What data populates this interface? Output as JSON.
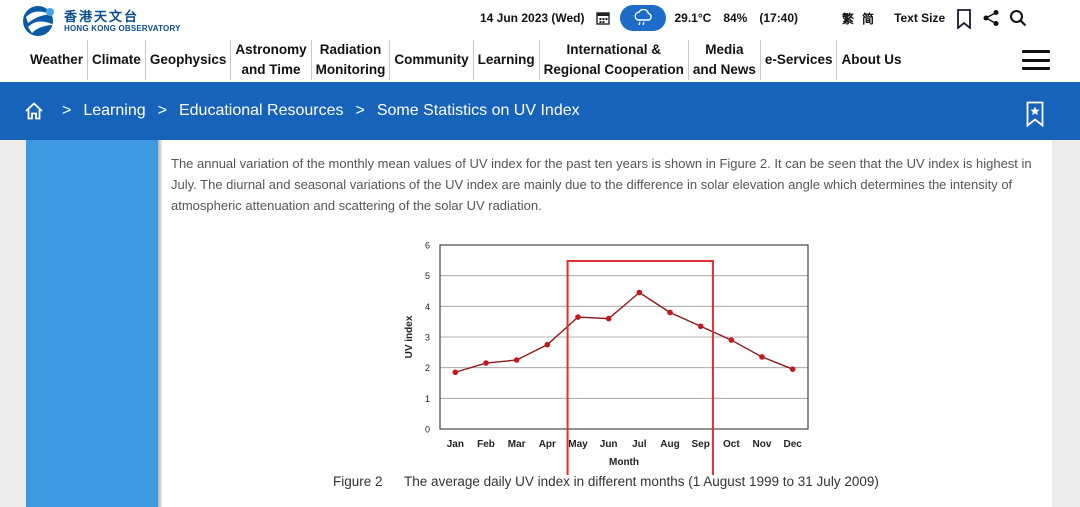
{
  "header": {
    "logo_zh": "香港天文台",
    "logo_en": "HONG KONG OBSERVATORY",
    "date": "14 Jun 2023 (Wed)",
    "temperature": "29.1°C",
    "humidity": "84%",
    "time": "(17:40)",
    "lang_traditional": "繁",
    "lang_simplified": "简",
    "text_size_label": "Text Size",
    "icons": [
      "calendar-icon",
      "weather-cloud-rain-icon",
      "bookmark-icon",
      "share-icon",
      "search-icon",
      "menu-icon"
    ]
  },
  "nav": {
    "items": [
      {
        "line1": "Weather",
        "line2": ""
      },
      {
        "line1": "Climate",
        "line2": ""
      },
      {
        "line1": "Geophysics",
        "line2": ""
      },
      {
        "line1": "Astronomy",
        "line2": "and Time"
      },
      {
        "line1": "Radiation",
        "line2": "Monitoring"
      },
      {
        "line1": "Community",
        "line2": ""
      },
      {
        "line1": "Learning",
        "line2": ""
      },
      {
        "line1": "International &",
        "line2": "Regional Cooperation"
      },
      {
        "line1": "Media",
        "line2": "and News"
      },
      {
        "line1": "e-Services",
        "line2": ""
      },
      {
        "line1": "About Us",
        "line2": ""
      }
    ]
  },
  "breadcrumb": {
    "separator": ">",
    "items": [
      "Learning",
      "Educational Resources",
      "Some Statistics on UV Index"
    ]
  },
  "content": {
    "paragraph": "The annual variation of the monthly mean values of UV index for the past ten years is shown in Figure 2.  It can be seen that the UV index is highest in July.  The diurnal and seasonal variations of the UV index are mainly due to the difference in solar elevation angle which determines the intensity of atmospheric attenuation and scattering of the solar UV radiation.",
    "caption_number": "Figure 2",
    "caption_text": "The average daily UV index in different months (1 August 1999 to 31 July 2009)"
  },
  "chart_data": {
    "type": "line",
    "title": "",
    "xlabel": "Month",
    "ylabel": "UV index",
    "categories": [
      "Jan",
      "Feb",
      "Mar",
      "Apr",
      "May",
      "Jun",
      "Jul",
      "Aug",
      "Sep",
      "Oct",
      "Nov",
      "Dec"
    ],
    "values": [
      1.85,
      2.15,
      2.25,
      2.75,
      3.65,
      3.6,
      4.45,
      3.8,
      3.35,
      2.9,
      2.35,
      1.95
    ],
    "ylim": [
      0,
      6
    ],
    "yticks": [
      0,
      1,
      2,
      3,
      4,
      5,
      6
    ],
    "grid": true,
    "line_color": "#8b1a1a",
    "marker_color": "#c4161c",
    "highlight": {
      "from": "May",
      "to": "Sep",
      "color": "#e03030"
    }
  },
  "colors": {
    "brand_blue": "#1863ba",
    "sidebar_blue": "#3d9ae0",
    "weather_pill": "#1e6cc9"
  }
}
